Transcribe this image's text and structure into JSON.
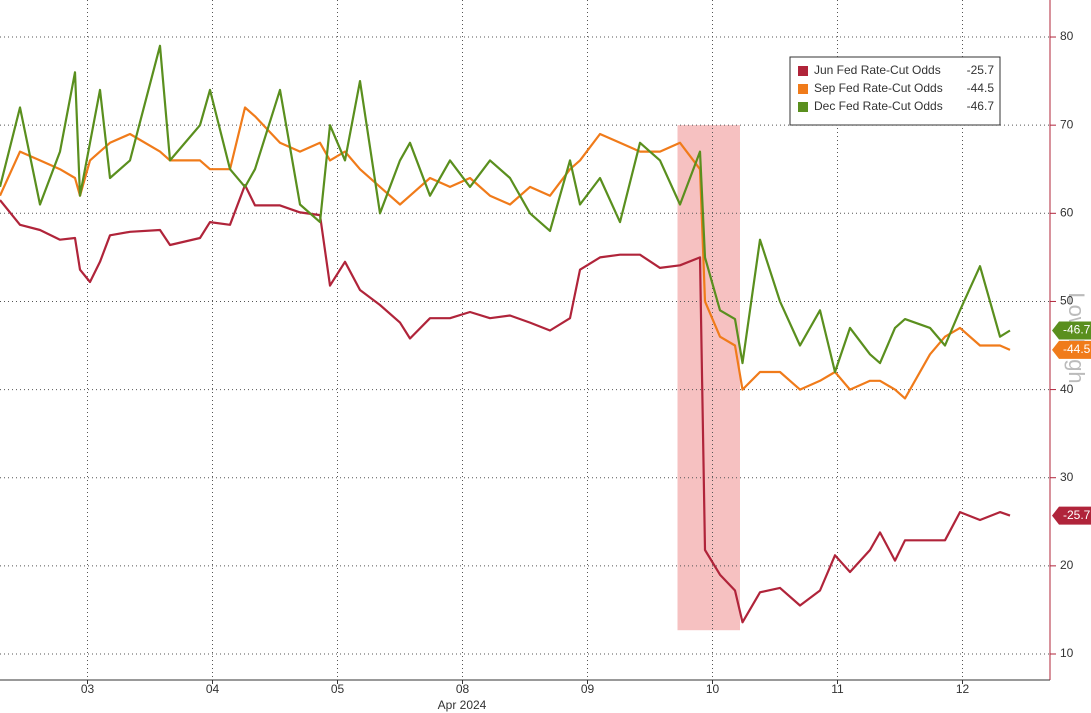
{
  "chart_data": {
    "type": "line",
    "x_caption": "Apr 2024",
    "side_label": "Low|High",
    "x": [
      -0.2,
      -0.04,
      0.12,
      0.28,
      0.4,
      0.44,
      0.52,
      0.6,
      0.68,
      0.84,
      1.08,
      1.16,
      1.4,
      1.48,
      1.64,
      1.76,
      1.84,
      2.04,
      2.2,
      2.36,
      2.44,
      2.56,
      2.68,
      2.84,
      3.0,
      3.08,
      3.24,
      3.4,
      3.56,
      3.72,
      3.88,
      4.04,
      4.2,
      4.36,
      4.44,
      4.6,
      4.76,
      4.92,
      5.08,
      5.24,
      5.4,
      5.44,
      5.56,
      5.68,
      5.74,
      5.88,
      6.04,
      6.2,
      6.36,
      6.48,
      6.6,
      6.76,
      6.84,
      6.96,
      7.04,
      7.24,
      7.36,
      7.48,
      7.64,
      7.8,
      7.88
    ],
    "series": [
      {
        "name": "Jun Fed Rate-Cut Odds",
        "legend_value": "-25.7",
        "color": "#b0243a",
        "values": [
          61.5,
          58.7,
          58.1,
          57.0,
          57.2,
          53.6,
          52.2,
          54.5,
          57.5,
          57.9,
          58.1,
          56.4,
          57.2,
          59.0,
          58.7,
          63.2,
          60.9,
          60.9,
          60.1,
          59.8,
          51.8,
          54.5,
          51.3,
          49.6,
          47.6,
          45.8,
          48.1,
          48.1,
          48.8,
          48.1,
          48.4,
          47.6,
          46.7,
          48.1,
          53.6,
          55.0,
          55.3,
          55.3,
          53.8,
          54.1,
          55.0,
          21.8,
          19.0,
          17.2,
          13.6,
          17.0,
          17.5,
          15.5,
          17.2,
          21.2,
          19.3,
          21.8,
          23.8,
          20.6,
          22.9,
          22.9,
          22.9,
          26.1,
          25.2,
          26.1,
          25.7
        ]
      },
      {
        "name": "Sep Fed Rate-Cut Odds",
        "legend_value": "-44.5",
        "color": "#f07b1a",
        "values": [
          62,
          67,
          66,
          65,
          64,
          62,
          66,
          67,
          68,
          69,
          67,
          66,
          66,
          65,
          65,
          72,
          71,
          68,
          67,
          68,
          66,
          67,
          65,
          63,
          61,
          62,
          64,
          63,
          64,
          62,
          61,
          63,
          62,
          65,
          66,
          69,
          68,
          67,
          67,
          68,
          65,
          50,
          46,
          45,
          40,
          42,
          42,
          40,
          41,
          42,
          40,
          41,
          41,
          40,
          39,
          44,
          46,
          47,
          45,
          45,
          44.5
        ]
      },
      {
        "name": "Dec Fed Rate-Cut Odds",
        "legend_value": "-46.7",
        "color": "#5a8f1e",
        "values": [
          63,
          72,
          61,
          67,
          76,
          62,
          68,
          74,
          64,
          66,
          79,
          66,
          70,
          74,
          65,
          63,
          65,
          74,
          61,
          59,
          70,
          66,
          75,
          60,
          66,
          68,
          62,
          66,
          63,
          66,
          64,
          60,
          58,
          66,
          61,
          64,
          59,
          68,
          66,
          61,
          67,
          55,
          49,
          48,
          43,
          57,
          50,
          45,
          49,
          42,
          47,
          44,
          43,
          47,
          48,
          47,
          45,
          49,
          54,
          46,
          46.7
        ]
      }
    ],
    "highlight": {
      "x": [
        5.22,
        5.72
      ],
      "y": [
        12.7,
        70
      ],
      "color": "#f4b6b6"
    },
    "xlim": [
      -0.2,
      8.2
    ],
    "xticks": [
      {
        "value": 0.5,
        "label": "03"
      },
      {
        "value": 1.5,
        "label": "04"
      },
      {
        "value": 2.5,
        "label": "05"
      },
      {
        "value": 3.5,
        "label": "08"
      },
      {
        "value": 4.5,
        "label": "09"
      },
      {
        "value": 5.5,
        "label": "10"
      },
      {
        "value": 6.5,
        "label": "11"
      },
      {
        "value": 7.5,
        "label": "12"
      }
    ],
    "ylim": [
      7.05,
      84.2
    ],
    "yticks": [
      10,
      20,
      30,
      40,
      50,
      60,
      70,
      80
    ],
    "grid": true,
    "legend": "top-right"
  }
}
